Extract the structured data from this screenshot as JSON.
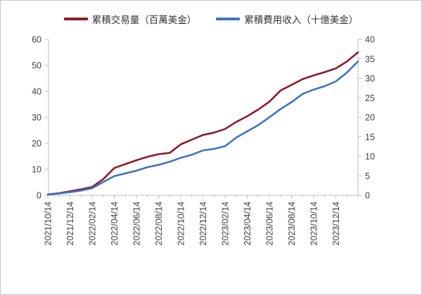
{
  "legend": {
    "series1_label": "累積交易量（百萬美金）",
    "series2_label": "累積費用收入（十億美金）"
  },
  "colors": {
    "series1": "#8E1B26",
    "series2": "#3E74BC",
    "axis_line": "#BFBFBF",
    "tick_text": "#404040",
    "legend_text": "#333333",
    "frame_border": "#C9C9C9"
  },
  "chart_data": {
    "type": "line",
    "title": "",
    "grid": false,
    "legend_position": "top",
    "x_label_rotation_deg": 90,
    "x": [
      "2021/10/14",
      "2021/11/14",
      "2021/12/14",
      "2022/01/14",
      "2022/02/14",
      "2022/03/14",
      "2022/04/14",
      "2022/05/14",
      "2022/06/14",
      "2022/07/14",
      "2022/08/14",
      "2022/09/14",
      "2022/10/14",
      "2022/11/14",
      "2022/12/14",
      "2023/01/14",
      "2023/02/14",
      "2023/03/14",
      "2023/04/14",
      "2023/05/14",
      "2023/06/14",
      "2023/07/14",
      "2023/08/14",
      "2023/09/14",
      "2023/10/14",
      "2023/11/14",
      "2023/12/14",
      "2024/01/14",
      "2024/02/14"
    ],
    "x_tick_labels": [
      "2021/10/14",
      "2021/12/14",
      "2022/02/14",
      "2022/04/14",
      "2022/06/14",
      "2022/08/14",
      "2022/10/14",
      "2022/12/14",
      "2023/02/14",
      "2023/04/14",
      "2023/06/14",
      "2023/08/14",
      "2023/10/14",
      "2023/12/14"
    ],
    "series": [
      {
        "name": "累積交易量（百萬美金）",
        "axis": "left",
        "color": "#8E1B26",
        "values": [
          0.3,
          0.8,
          1.5,
          2.3,
          3.2,
          6.2,
          10.5,
          12.0,
          13.5,
          14.8,
          15.8,
          16.3,
          19.6,
          21.4,
          23.2,
          24.1,
          25.5,
          28.2,
          30.4,
          33.0,
          36.0,
          40.3,
          42.5,
          44.7,
          46.1,
          47.4,
          48.8,
          51.5,
          55.0
        ]
      },
      {
        "name": "累積費用收入（十億美金）",
        "axis": "right",
        "color": "#3E74BC",
        "values": [
          0.15,
          0.45,
          0.8,
          1.2,
          1.8,
          3.4,
          4.9,
          5.6,
          6.3,
          7.2,
          7.8,
          8.6,
          9.6,
          10.4,
          11.5,
          11.9,
          12.6,
          14.8,
          16.4,
          18.0,
          20.0,
          22.1,
          23.9,
          26.0,
          27.1,
          28.0,
          29.2,
          31.5,
          34.3
        ]
      }
    ],
    "left_axis": {
      "min": 0,
      "max": 60,
      "step": 10,
      "ticks": [
        0,
        10,
        20,
        30,
        40,
        50,
        60
      ]
    },
    "right_axis": {
      "min": 0,
      "max": 40,
      "step": 5,
      "ticks": [
        0,
        5,
        10,
        15,
        20,
        25,
        30,
        35,
        40
      ]
    }
  }
}
